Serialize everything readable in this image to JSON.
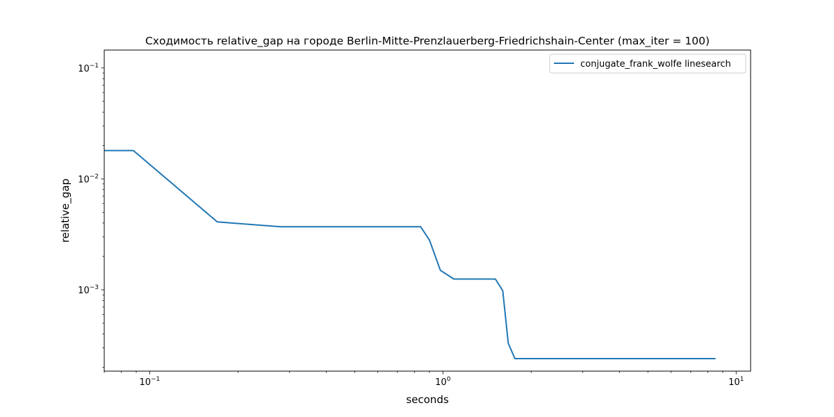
{
  "chart_data": {
    "type": "line",
    "title": "Сходимость relative_gap на городе Berlin-Mitte-Prenzlauerberg-Friedrichshain-Center  (max_iter = 100)",
    "xlabel": "seconds",
    "ylabel": "relative_gap",
    "xscale": "log",
    "yscale": "log",
    "xlim": [
      0.07,
      11.2
    ],
    "ylim": [
      0.000185,
      0.145
    ],
    "x_ticks": [
      {
        "value": 0.1,
        "base": "10",
        "exp": "−1"
      },
      {
        "value": 1,
        "base": "10",
        "exp": "0"
      },
      {
        "value": 10,
        "base": "10",
        "exp": "1"
      }
    ],
    "y_ticks": [
      {
        "value": 0.1,
        "base": "10",
        "exp": "−1"
      },
      {
        "value": 0.01,
        "base": "10",
        "exp": "−2"
      },
      {
        "value": 0.001,
        "base": "10",
        "exp": "−3"
      }
    ],
    "grid": false,
    "legend_position": "top-right",
    "series": [
      {
        "name": "conjugate_frank_wolfe linesearch",
        "color": "#1f77b4",
        "x": [
          0.07,
          0.088,
          0.17,
          0.28,
          0.84,
          0.9,
          0.98,
          1.09,
          1.51,
          1.6,
          1.67,
          1.76,
          8.5
        ],
        "y": [
          0.018,
          0.018,
          0.0041,
          0.0037,
          0.0037,
          0.0028,
          0.0015,
          0.00125,
          0.00125,
          0.00098,
          0.00033,
          0.00024,
          0.00024
        ]
      }
    ]
  }
}
